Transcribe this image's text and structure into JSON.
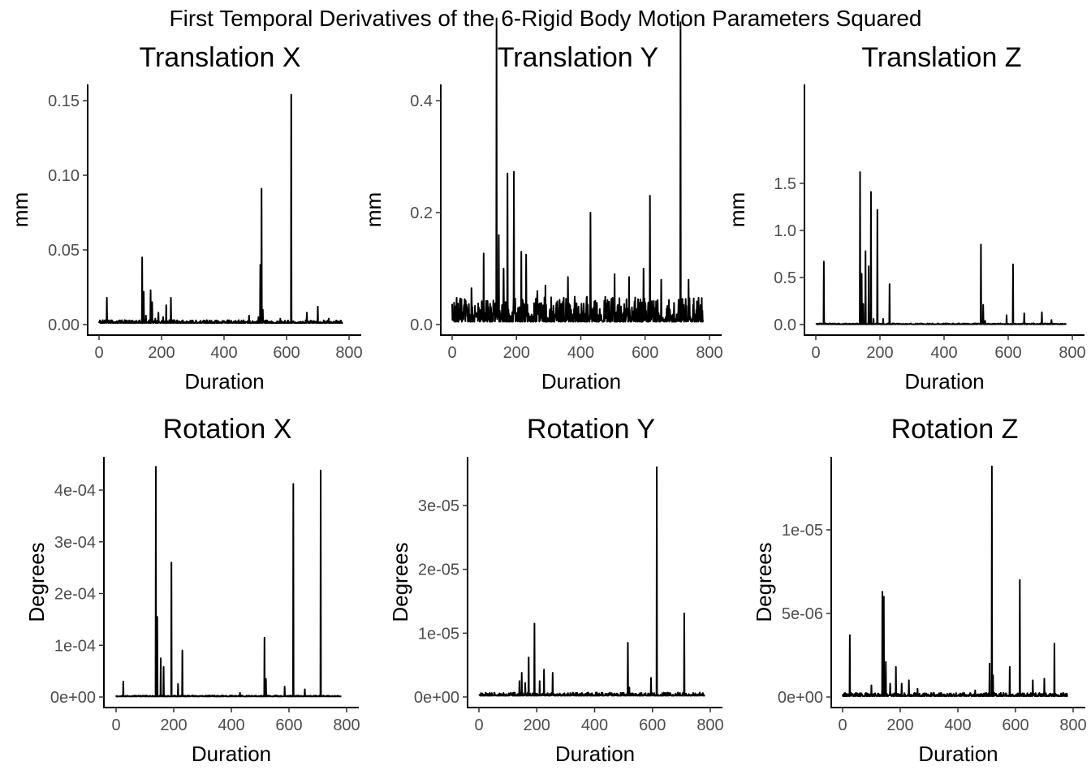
{
  "figure_title": "First Temporal Derivatives of the 6-Rigid Body Motion Parameters Squared",
  "chart_data": [
    {
      "type": "line",
      "title": "Translation X",
      "xlabel": "Duration",
      "ylabel": "mm",
      "xlim": [
        0,
        780
      ],
      "ylim": [
        0,
        0.16
      ],
      "xticks": [
        0,
        200,
        400,
        600,
        800
      ],
      "xtick_labels": [
        "0",
        "200",
        "400",
        "600",
        "800"
      ],
      "yticks": [
        0,
        0.05,
        0.1,
        0.15
      ],
      "ytick_labels": [
        "0.00",
        "0.05",
        "0.10",
        "0.15"
      ],
      "grid": false,
      "baseline": 0.001,
      "noise": 0.002,
      "peaks": [
        [
          25,
          0.018
        ],
        [
          138,
          0.045
        ],
        [
          143,
          0.022
        ],
        [
          150,
          0.006
        ],
        [
          165,
          0.023
        ],
        [
          170,
          0.015
        ],
        [
          180,
          0.004
        ],
        [
          190,
          0.008
        ],
        [
          205,
          0.005
        ],
        [
          215,
          0.013
        ],
        [
          230,
          0.018
        ],
        [
          345,
          0.003
        ],
        [
          480,
          0.006
        ],
        [
          510,
          0.005
        ],
        [
          516,
          0.04
        ],
        [
          520,
          0.091
        ],
        [
          524,
          0.01
        ],
        [
          580,
          0.004
        ],
        [
          615,
          0.154
        ],
        [
          665,
          0.008
        ],
        [
          700,
          0.012
        ],
        [
          735,
          0.004
        ]
      ]
    },
    {
      "type": "line",
      "title": "Translation Y",
      "xlabel": "Duration",
      "ylabel": "mm",
      "xlim": [
        0,
        780
      ],
      "ylim": [
        0,
        0.57
      ],
      "xticks": [
        0,
        200,
        400,
        600,
        800
      ],
      "xtick_labels": [
        "0",
        "200",
        "400",
        "600",
        "800"
      ],
      "yticks": [
        0,
        0.2,
        0.4
      ],
      "ytick_labels": [
        "0.0",
        "0.2",
        "0.4"
      ],
      "grid": false,
      "baseline": 0.005,
      "noise": 0.045,
      "peaks": [
        [
          60,
          0.065
        ],
        [
          98,
          0.127
        ],
        [
          138,
          0.547
        ],
        [
          145,
          0.16
        ],
        [
          160,
          0.1
        ],
        [
          172,
          0.27
        ],
        [
          192,
          0.273
        ],
        [
          215,
          0.13
        ],
        [
          230,
          0.125
        ],
        [
          265,
          0.06
        ],
        [
          290,
          0.07
        ],
        [
          360,
          0.085
        ],
        [
          430,
          0.2
        ],
        [
          505,
          0.09
        ],
        [
          550,
          0.085
        ],
        [
          595,
          0.1
        ],
        [
          615,
          0.23
        ],
        [
          650,
          0.08
        ],
        [
          710,
          0.54
        ],
        [
          735,
          0.08
        ]
      ]
    },
    {
      "type": "line",
      "title": "Translation Z",
      "xlabel": "Duration",
      "ylabel": "mm",
      "xlim": [
        0,
        780
      ],
      "ylim": [
        0,
        1.7
      ],
      "xticks": [
        0,
        200,
        400,
        600,
        800
      ],
      "xtick_labels": [
        "0",
        "200",
        "400",
        "600",
        "800"
      ],
      "yticks": [
        0,
        0.5,
        1.0,
        1.5
      ],
      "ytick_labels": [
        "0.0",
        "0.5",
        "1.0",
        "1.5"
      ],
      "grid": false,
      "baseline": 0.003,
      "noise": 0.01,
      "peaks": [
        [
          25,
          0.67
        ],
        [
          138,
          1.62
        ],
        [
          143,
          0.54
        ],
        [
          148,
          0.22
        ],
        [
          155,
          0.78
        ],
        [
          165,
          0.62
        ],
        [
          172,
          1.41
        ],
        [
          180,
          0.06
        ],
        [
          192,
          1.22
        ],
        [
          210,
          0.06
        ],
        [
          230,
          0.43
        ],
        [
          515,
          0.85
        ],
        [
          522,
          0.21
        ],
        [
          528,
          0.04
        ],
        [
          595,
          0.1
        ],
        [
          615,
          0.64
        ],
        [
          650,
          0.12
        ],
        [
          705,
          0.13
        ],
        [
          735,
          0.05
        ]
      ]
    },
    {
      "type": "line",
      "title": "Rotation X",
      "xlabel": "Duration",
      "ylabel": "Degrees",
      "xlim": [
        0,
        780
      ],
      "ylim": [
        0,
        0.00047
      ],
      "xticks": [
        0,
        200,
        400,
        600,
        800
      ],
      "xtick_labels": [
        "0",
        "200",
        "400",
        "600",
        "800"
      ],
      "yticks": [
        0,
        0.0001,
        0.0002,
        0.0003,
        0.0004
      ],
      "ytick_labels": [
        "0e+00",
        "1e-04",
        "2e-04",
        "3e-04",
        "4e-04"
      ],
      "grid": false,
      "baseline": 1e-06,
      "noise": 2e-06,
      "peaks": [
        [
          25,
          3e-05
        ],
        [
          138,
          0.000445
        ],
        [
          143,
          0.000155
        ],
        [
          155,
          7.5e-05
        ],
        [
          165,
          5.8e-05
        ],
        [
          192,
          0.00026
        ],
        [
          215,
          2.5e-05
        ],
        [
          230,
          9e-05
        ],
        [
          430,
          8e-06
        ],
        [
          515,
          0.000115
        ],
        [
          520,
          3.5e-05
        ],
        [
          585,
          2e-05
        ],
        [
          615,
          0.000412
        ],
        [
          655,
          1.5e-05
        ],
        [
          710,
          0.000438
        ]
      ]
    },
    {
      "type": "line",
      "title": "Rotation Y",
      "xlabel": "Duration",
      "ylabel": "Degrees",
      "xlim": [
        0,
        780
      ],
      "ylim": [
        0,
        3.75e-05
      ],
      "xticks": [
        0,
        200,
        400,
        600,
        800
      ],
      "xtick_labels": [
        "0",
        "200",
        "400",
        "600",
        "800"
      ],
      "yticks": [
        0,
        1e-05,
        2e-05,
        3e-05
      ],
      "ytick_labels": [
        "0e+00",
        "1e-05",
        "2e-05",
        "3e-05"
      ],
      "grid": false,
      "baseline": 2e-07,
      "noise": 5e-07,
      "peaks": [
        [
          140,
          2.5e-06
        ],
        [
          148,
          3.8e-06
        ],
        [
          160,
          2.2e-06
        ],
        [
          172,
          6.2e-06
        ],
        [
          192,
          1.15e-05
        ],
        [
          210,
          2.5e-06
        ],
        [
          225,
          4.3e-06
        ],
        [
          255,
          3.8e-06
        ],
        [
          515,
          8.5e-06
        ],
        [
          520,
          1.5e-06
        ],
        [
          595,
          3e-06
        ],
        [
          615,
          3.6e-05
        ],
        [
          710,
          1.31e-05
        ]
      ]
    },
    {
      "type": "line",
      "title": "Rotation Z",
      "xlabel": "Duration",
      "ylabel": "Degrees",
      "xlim": [
        0,
        780
      ],
      "ylim": [
        0,
        1.43e-05
      ],
      "xticks": [
        0,
        200,
        400,
        600,
        800
      ],
      "xtick_labels": [
        "0",
        "200",
        "400",
        "600",
        "800"
      ],
      "yticks": [
        0,
        5e-06,
        1e-05
      ],
      "ytick_labels": [
        "0e+00",
        "5e-06",
        "1e-05"
      ],
      "grid": false,
      "baseline": 5e-08,
      "noise": 2e-07,
      "peaks": [
        [
          25,
          3.7e-06
        ],
        [
          100,
          7e-07
        ],
        [
          138,
          6.3e-06
        ],
        [
          143,
          6e-06
        ],
        [
          150,
          2.1e-06
        ],
        [
          165,
          8e-07
        ],
        [
          185,
          1.8e-06
        ],
        [
          205,
          8e-07
        ],
        [
          230,
          1e-06
        ],
        [
          260,
          5e-07
        ],
        [
          460,
          4e-07
        ],
        [
          510,
          2e-06
        ],
        [
          518,
          1.38e-05
        ],
        [
          522,
          1.3e-06
        ],
        [
          580,
          1.8e-06
        ],
        [
          615,
          7e-06
        ],
        [
          660,
          1e-06
        ],
        [
          700,
          1.1e-06
        ],
        [
          735,
          3.2e-06
        ]
      ]
    }
  ]
}
